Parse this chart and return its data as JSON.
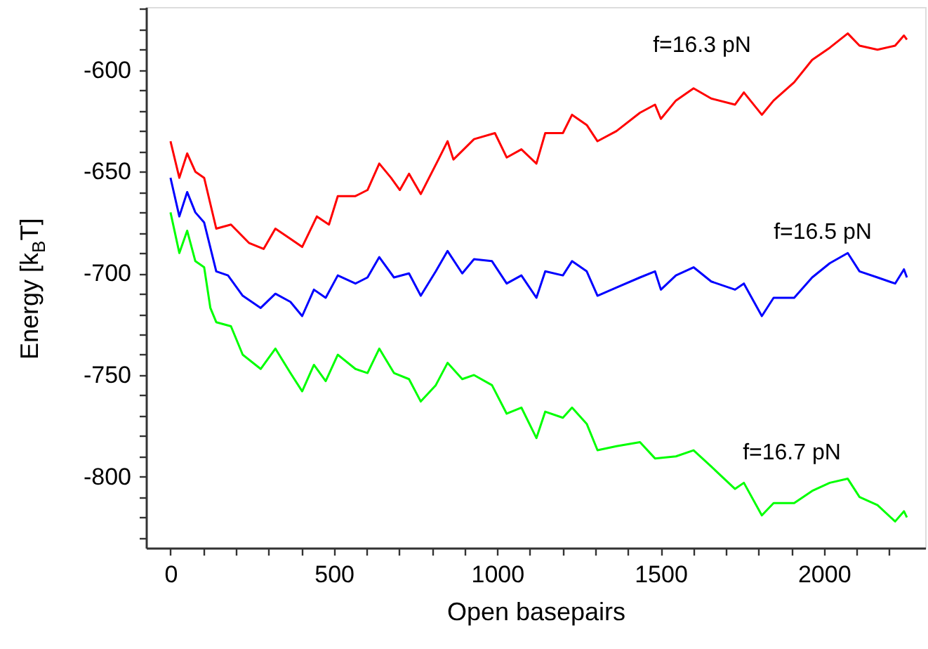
{
  "chart_data": {
    "type": "line",
    "xlabel": "Open basepairs",
    "ylabel": "Energy [k$_{B}$T]",
    "xlim": [
      -75,
      2310
    ],
    "ylim": [
      -835,
      -569
    ],
    "xticks": [
      0,
      {
        "value": 100,
        "label": null
      },
      {
        "value": 200,
        "label": null
      },
      {
        "value": 300,
        "label": null
      },
      {
        "value": 400,
        "label": null
      },
      500,
      {
        "value": 600,
        "label": null
      },
      {
        "value": 700,
        "label": null
      },
      {
        "value": 800,
        "label": null
      },
      {
        "value": 900,
        "label": null
      },
      1000,
      {
        "value": 1100,
        "label": null
      },
      {
        "value": 1200,
        "label": null
      },
      {
        "value": 1300,
        "label": null
      },
      {
        "value": 1400,
        "label": null
      },
      1500,
      {
        "value": 1600,
        "label": null
      },
      {
        "value": 1700,
        "label": null
      },
      {
        "value": 1800,
        "label": null
      },
      {
        "value": 1900,
        "label": null
      },
      2000,
      {
        "value": 2100,
        "label": null
      },
      {
        "value": 2200,
        "label": null
      }
    ],
    "yticks": [
      {
        "value": -830,
        "label": null
      },
      {
        "value": -820,
        "label": null
      },
      {
        "value": -810,
        "label": null
      },
      -800,
      {
        "value": -790,
        "label": null
      },
      {
        "value": -780,
        "label": null
      },
      {
        "value": -770,
        "label": null
      },
      {
        "value": -760,
        "label": null
      },
      -750,
      {
        "value": -740,
        "label": null
      },
      {
        "value": -730,
        "label": null
      },
      {
        "value": -720,
        "label": null
      },
      {
        "value": -710,
        "label": null
      },
      -700,
      {
        "value": -690,
        "label": null
      },
      {
        "value": -680,
        "label": null
      },
      {
        "value": -670,
        "label": null
      },
      {
        "value": -660,
        "label": null
      },
      -650,
      {
        "value": -640,
        "label": null
      },
      {
        "value": -630,
        "label": null
      },
      {
        "value": -620,
        "label": null
      },
      {
        "value": -610,
        "label": null
      },
      -600,
      {
        "value": -590,
        "label": null
      },
      {
        "value": -580,
        "label": null
      },
      {
        "value": -570,
        "label": null
      }
    ],
    "grid": false,
    "marker": "none",
    "line_style": "solid",
    "series": [
      {
        "name": "f=16.3 pN",
        "color": "#ff0000",
        "x": [
          0,
          27,
          51,
          76,
          103,
          140,
          185,
          240,
          285,
          321,
          367,
          403,
          448,
          485,
          512,
          566,
          603,
          639,
          675,
          702,
          730,
          766,
          820,
          848,
          866,
          929,
          993,
          1029,
          1074,
          1120,
          1147,
          1201,
          1229,
          1274,
          1307,
          1365,
          1437,
          1483,
          1501,
          1547,
          1601,
          1655,
          1728,
          1755,
          1810,
          1846,
          1909,
          1964,
          2018,
          2073,
          2109,
          2164,
          2218,
          2245,
          2254
        ],
        "values": [
          -635,
          -653,
          -641,
          -650,
          -653,
          -678,
          -676,
          -685,
          -688,
          -678,
          -683,
          -687,
          -672,
          -676,
          -662,
          -662,
          -659,
          -646,
          -653,
          -659,
          -651,
          -661,
          -644,
          -635,
          -644,
          -634,
          -631,
          -643,
          -639,
          -646,
          -631,
          -631,
          -622,
          -627,
          -635,
          -630,
          -621,
          -617,
          -624,
          -615,
          -609,
          -614,
          -617,
          -611,
          -622,
          -615,
          -606,
          -595,
          -589,
          -582,
          -588,
          -590,
          -588,
          -583,
          -585
        ]
      },
      {
        "name": "f=16.5 pN",
        "color": "#0000ff",
        "x": [
          0,
          27,
          51,
          76,
          103,
          140,
          176,
          221,
          276,
          321,
          367,
          403,
          439,
          475,
          512,
          566,
          603,
          639,
          684,
          730,
          766,
          812,
          848,
          893,
          929,
          984,
          1029,
          1074,
          1120,
          1147,
          1201,
          1229,
          1274,
          1307,
          1365,
          1437,
          1483,
          1501,
          1547,
          1601,
          1655,
          1728,
          1755,
          1810,
          1846,
          1909,
          1964,
          2018,
          2073,
          2109,
          2164,
          2218,
          2245,
          2254
        ],
        "values": [
          -653,
          -672,
          -660,
          -670,
          -675,
          -699,
          -701,
          -711,
          -717,
          -710,
          -714,
          -721,
          -708,
          -712,
          -701,
          -705,
          -702,
          -692,
          -702,
          -700,
          -711,
          -699,
          -689,
          -700,
          -693,
          -694,
          -705,
          -701,
          -712,
          -699,
          -701,
          -694,
          -699,
          -711,
          -707,
          -702,
          -699,
          -708,
          -701,
          -697,
          -704,
          -708,
          -705,
          -721,
          -712,
          -712,
          -702,
          -695,
          -690,
          -699,
          -702,
          -705,
          -698,
          -702
        ]
      },
      {
        "name": "f=16.7 pN",
        "color": "#00ff00",
        "x": [
          0,
          27,
          51,
          76,
          103,
          122,
          140,
          185,
          221,
          276,
          321,
          367,
          403,
          439,
          475,
          512,
          566,
          603,
          639,
          684,
          730,
          766,
          812,
          848,
          893,
          929,
          984,
          1029,
          1074,
          1120,
          1147,
          1201,
          1229,
          1274,
          1307,
          1365,
          1437,
          1483,
          1547,
          1601,
          1655,
          1728,
          1755,
          1810,
          1846,
          1909,
          1964,
          2018,
          2073,
          2109,
          2164,
          2218,
          2245,
          2254
        ],
        "values": [
          -670,
          -690,
          -679,
          -694,
          -697,
          -717,
          -724,
          -726,
          -740,
          -747,
          -737,
          -749,
          -758,
          -745,
          -753,
          -740,
          -747,
          -749,
          -737,
          -749,
          -752,
          -763,
          -755,
          -744,
          -752,
          -750,
          -755,
          -769,
          -766,
          -781,
          -768,
          -771,
          -766,
          -774,
          -787,
          -785,
          -783,
          -791,
          -790,
          -787,
          -795,
          -806,
          -803,
          -819,
          -813,
          -813,
          -807,
          -803,
          -801,
          -810,
          -814,
          -822,
          -817,
          -820
        ]
      }
    ]
  }
}
